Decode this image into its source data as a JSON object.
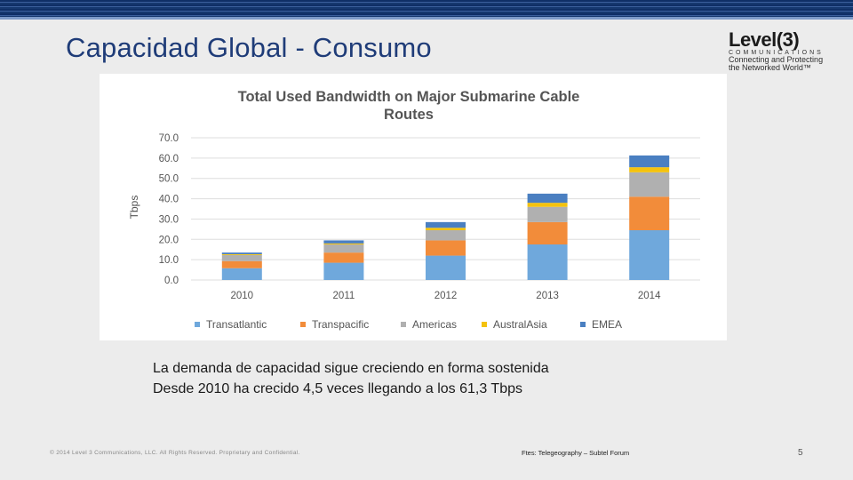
{
  "slide": {
    "title": "Capacidad Global - Consumo",
    "caption_line1": "La demanda de capacidad sigue creciendo en forma sostenida",
    "caption_line2": "Desde 2010 ha crecido 4,5 veces llegando a los 61,3 Tbps",
    "footer_copyright": "© 2014 Level 3 Communications, LLC. All Rights Reserved. Proprietary and Confidential.",
    "footer_source": "Ftes: Telegeography – Subtel Forum",
    "page_number": "5"
  },
  "logo": {
    "name": "Level(3)",
    "sub": "COMMUNICATIONS",
    "tagline1": "Connecting and Protecting",
    "tagline2": "the Networked World™"
  },
  "colors": {
    "Transatlantic": "#6fa8dc",
    "Transpacific": "#f28c3a",
    "Americas": "#b0b0b0",
    "AustralAsia": "#f4c20d",
    "EMEA": "#4a7fc1"
  },
  "chart_data": {
    "type": "bar",
    "stacked": true,
    "title_line1": "Total Used Bandwidth on Major Submarine Cable",
    "title_line2": "Routes",
    "ylabel": "Tbps",
    "xlabel": "",
    "ylim": [
      0,
      70
    ],
    "yticks": [
      "0.0",
      "10.0",
      "20.0",
      "30.0",
      "40.0",
      "50.0",
      "60.0",
      "70.0"
    ],
    "grid": true,
    "legend_position": "bottom",
    "categories": [
      "2010",
      "2011",
      "2012",
      "2013",
      "2014"
    ],
    "series": [
      {
        "name": "Transatlantic",
        "values": [
          5.8,
          8.5,
          12.0,
          17.5,
          24.5
        ]
      },
      {
        "name": "Transpacific",
        "values": [
          3.5,
          5.0,
          7.5,
          11.0,
          16.5
        ]
      },
      {
        "name": "Americas",
        "values": [
          3.0,
          4.0,
          5.0,
          7.5,
          12.0
        ]
      },
      {
        "name": "AustralAsia",
        "values": [
          0.4,
          0.5,
          1.2,
          2.0,
          2.5
        ]
      },
      {
        "name": "EMEA",
        "values": [
          0.8,
          1.5,
          2.8,
          4.5,
          5.8
        ]
      }
    ]
  }
}
